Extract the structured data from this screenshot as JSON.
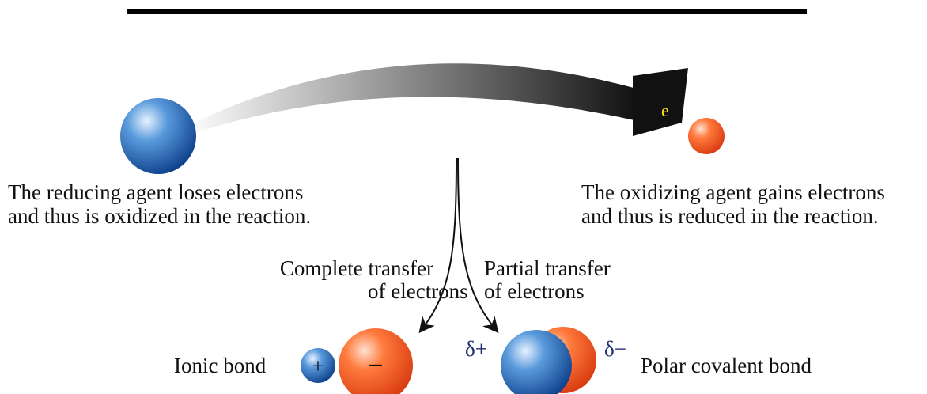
{
  "electron_label": {
    "base": "e",
    "sup": "−"
  },
  "reducing_agent": {
    "lines": [
      "The reducing agent loses electrons",
      "and thus is oxidized in the reaction."
    ]
  },
  "oxidizing_agent": {
    "lines": [
      "The oxidizing agent gains electrons",
      "and thus is reduced in the reaction."
    ]
  },
  "complete_transfer": {
    "lines": [
      "Complete transfer",
      "of electrons"
    ]
  },
  "partial_transfer": {
    "lines": [
      "Partial transfer",
      "of electrons"
    ]
  },
  "ionic": {
    "label": "Ionic bond",
    "plus": "+",
    "minus": "−"
  },
  "polar": {
    "label": "Polar covalent bond",
    "delta_plus": "δ+",
    "delta_minus": "δ−"
  }
}
